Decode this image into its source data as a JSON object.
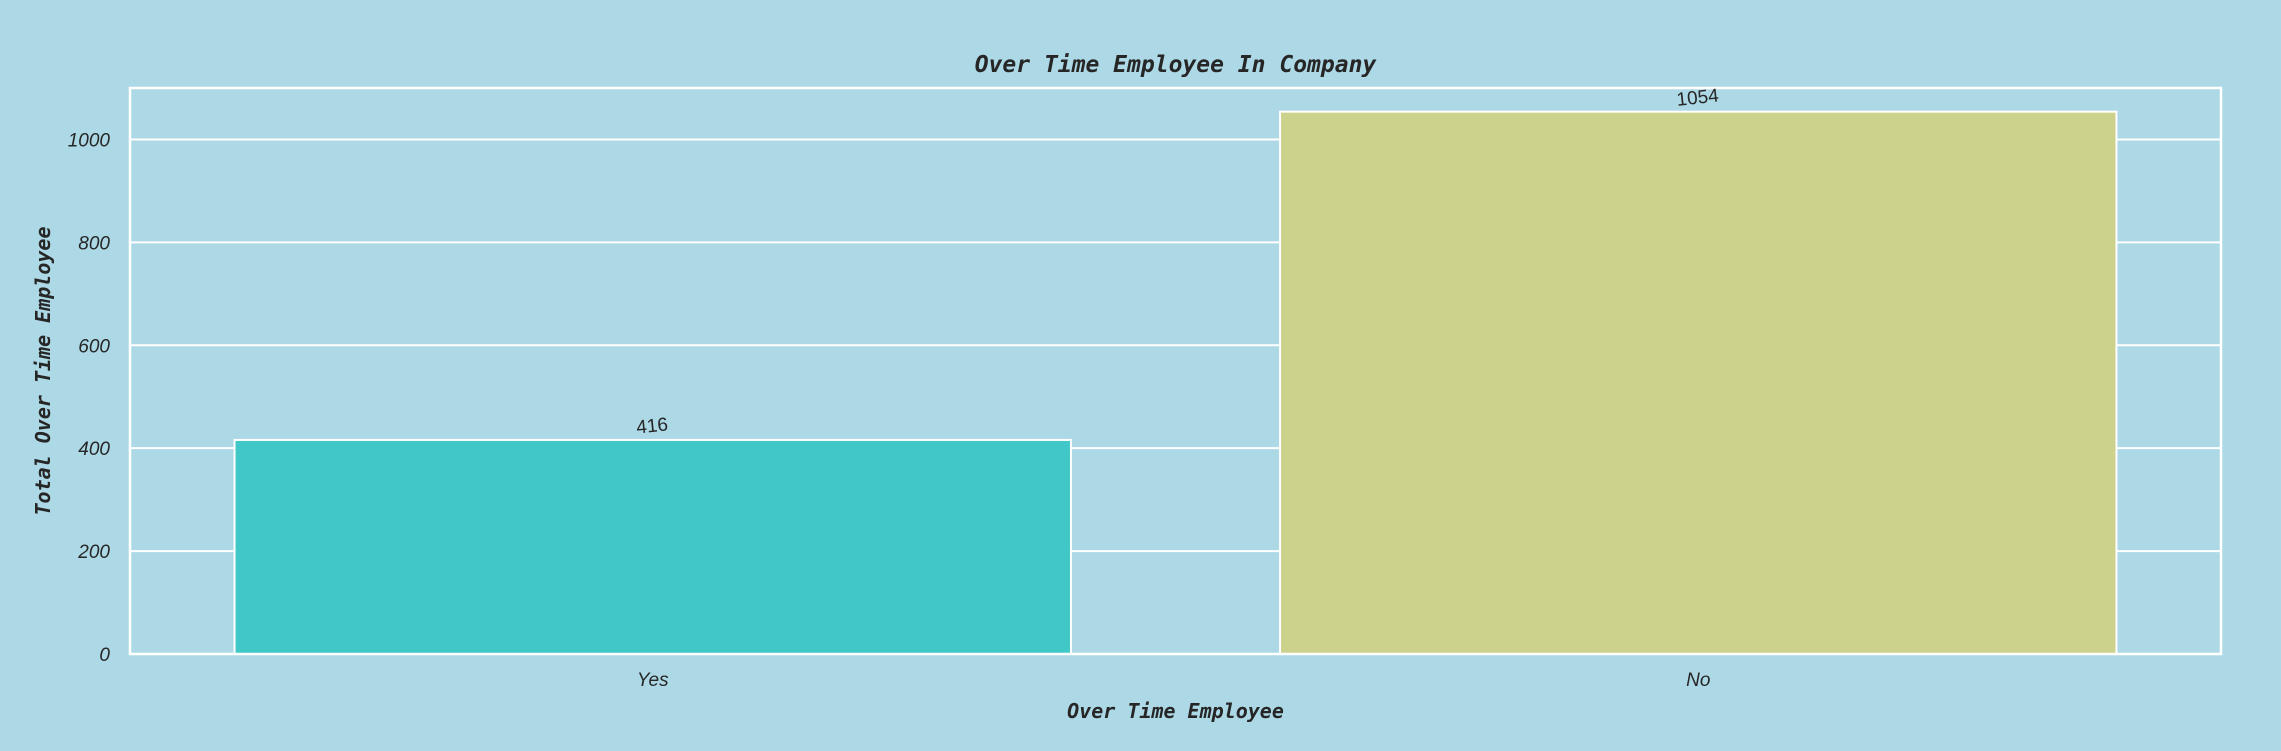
{
  "chart_data": {
    "type": "bar",
    "title": "Over Time Employee In Company",
    "xlabel": "Over Time Employee",
    "ylabel": "Total Over Time Employee",
    "categories": [
      "Yes",
      "No"
    ],
    "values": [
      416,
      1054
    ],
    "data_labels": [
      "416",
      "1054"
    ],
    "bar_colors": [
      "#40C7C7",
      "#CCD18C"
    ],
    "ylim": [
      0,
      1100
    ],
    "yticks": [
      0,
      200,
      400,
      600,
      800,
      1000
    ],
    "ytick_labels": [
      "0",
      "200",
      "400",
      "600",
      "800",
      "1000"
    ],
    "grid": true,
    "background_color": "#ADD8E6",
    "grid_color": "#FFFFFF"
  }
}
